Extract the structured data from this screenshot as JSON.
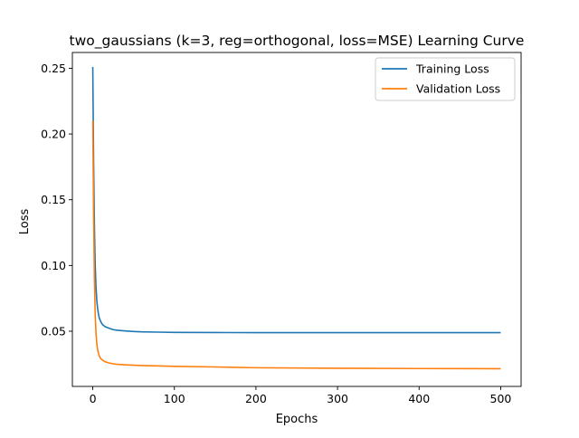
{
  "chart_data": {
    "type": "line",
    "title": "two_gaussians (k=3, reg=orthogonal, loss=MSE) Learning Curve",
    "xlabel": "Epochs",
    "ylabel": "Loss",
    "xlim": [
      -25,
      525
    ],
    "ylim": [
      0.008,
      0.262
    ],
    "xticks": [
      0,
      100,
      200,
      300,
      400,
      500
    ],
    "yticks": [
      0.05,
      0.1,
      0.15,
      0.2,
      0.25
    ],
    "ytick_labels": [
      "0.05",
      "0.10",
      "0.15",
      "0.20",
      "0.25"
    ],
    "legend_position": "top-right",
    "grid": false,
    "series": [
      {
        "name": "Training Loss",
        "color": "#1f77b4",
        "x": [
          0,
          1,
          2,
          3,
          4,
          5,
          6,
          7,
          8,
          10,
          12,
          15,
          20,
          25,
          30,
          40,
          50,
          60,
          80,
          100,
          150,
          200,
          300,
          400,
          500
        ],
        "values": [
          0.251,
          0.18,
          0.13,
          0.1,
          0.083,
          0.073,
          0.067,
          0.063,
          0.06,
          0.057,
          0.055,
          0.0535,
          0.0522,
          0.0512,
          0.0507,
          0.0502,
          0.0498,
          0.0495,
          0.0493,
          0.0491,
          0.049,
          0.0489,
          0.0489,
          0.0489,
          0.0489
        ]
      },
      {
        "name": "Validation Loss",
        "color": "#ff7f0e",
        "x": [
          0,
          1,
          2,
          3,
          4,
          5,
          6,
          7,
          8,
          10,
          12,
          15,
          20,
          25,
          30,
          40,
          50,
          60,
          80,
          100,
          150,
          200,
          300,
          400,
          500
        ],
        "values": [
          0.21,
          0.14,
          0.09,
          0.062,
          0.048,
          0.04,
          0.036,
          0.033,
          0.031,
          0.029,
          0.028,
          0.0268,
          0.0258,
          0.0252,
          0.0248,
          0.0244,
          0.0241,
          0.0239,
          0.0236,
          0.0233,
          0.0228,
          0.0222,
          0.0218,
          0.0216,
          0.0215
        ]
      }
    ]
  }
}
